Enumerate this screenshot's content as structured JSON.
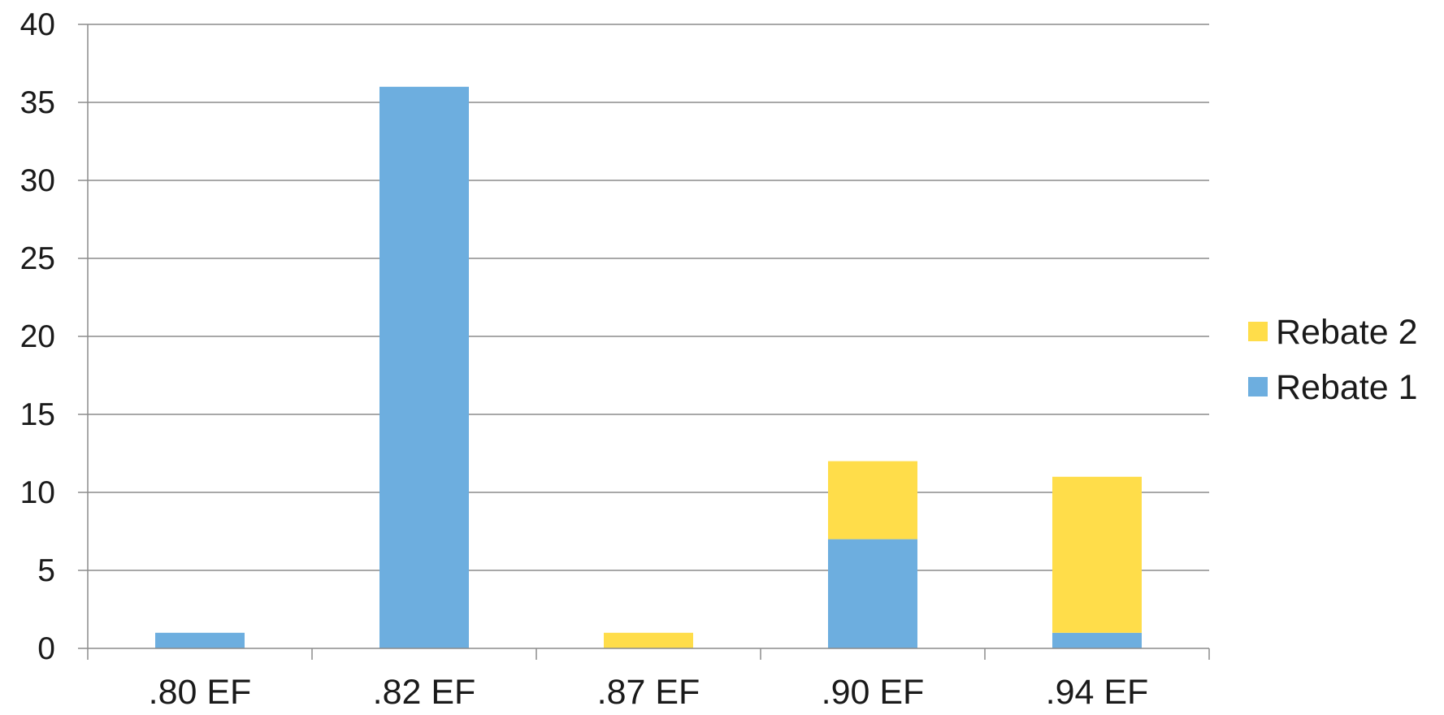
{
  "chart_data": {
    "type": "bar",
    "stacked": true,
    "title": "",
    "xlabel": "",
    "ylabel": "",
    "categories": [
      ".80 EF",
      ".82 EF",
      ".87 EF",
      ".90 EF",
      ".94 EF"
    ],
    "series": [
      {
        "name": "Rebate 1",
        "values": [
          1,
          36,
          0,
          7,
          1
        ],
        "color": "#6DAEDF"
      },
      {
        "name": "Rebate 2",
        "values": [
          0,
          0,
          1,
          5,
          10
        ],
        "color": "#FFDD4A"
      }
    ],
    "ylim": [
      0,
      40
    ],
    "yticks": [
      0,
      5,
      10,
      15,
      20,
      25,
      30,
      35,
      40
    ],
    "grid": true,
    "legend_position": "right",
    "legend_order": [
      "Rebate 2",
      "Rebate 1"
    ]
  }
}
